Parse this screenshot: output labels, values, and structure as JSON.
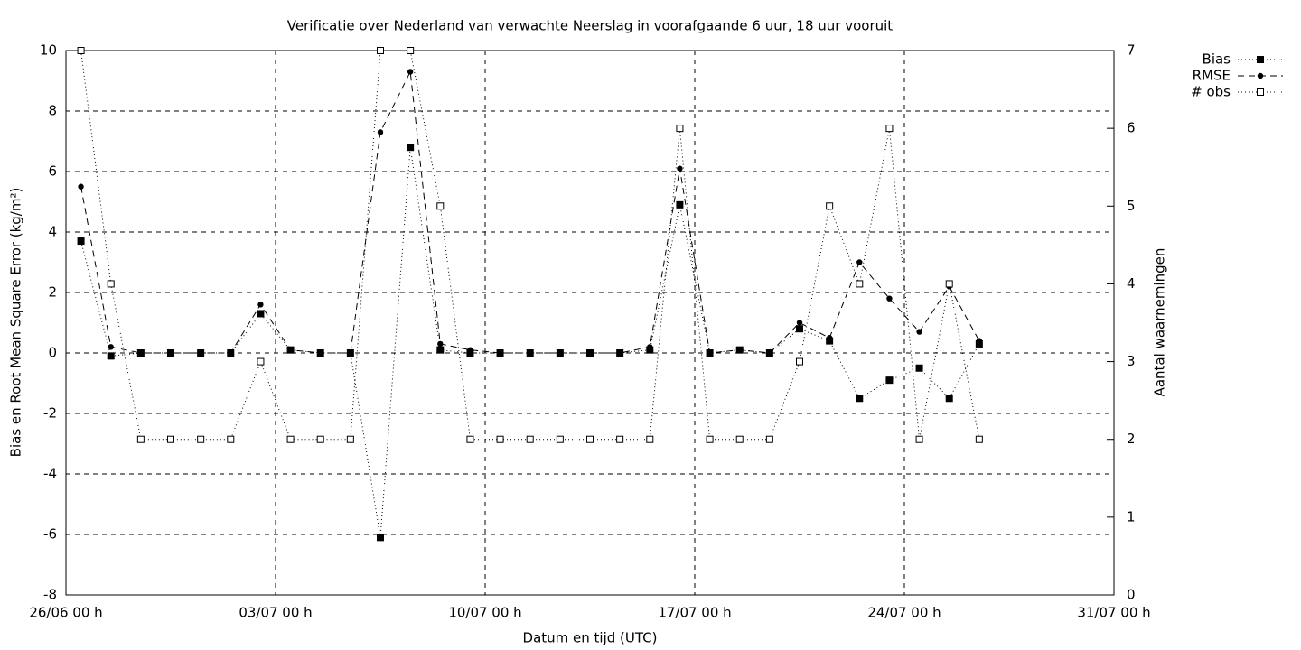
{
  "chart_data": {
    "type": "line",
    "title": "Verificatie over Nederland van verwachte Neerslag in voorafgaande 6 uur, 18 uur vooruit",
    "xlabel": "Datum en tijd (UTC)",
    "ylabel": "Bias en Root Mean Square Error (kg/m²)",
    "y2label": "Aantal waarnemingen",
    "x": [
      "26/06 12 h",
      "27/06 12 h",
      "28/06 12 h",
      "29/06 12 h",
      "30/06 12 h",
      "01/07 12 h",
      "02/07 12 h",
      "03/07 12 h",
      "04/07 12 h",
      "05/07 12 h",
      "06/07 12 h",
      "07/07 12 h",
      "08/07 12 h",
      "09/07 12 h",
      "10/07 12 h",
      "11/07 12 h",
      "12/07 12 h",
      "13/07 12 h",
      "14/07 12 h",
      "15/07 12 h",
      "16/07 12 h",
      "17/07 12 h",
      "18/07 12 h",
      "19/07 12 h",
      "20/07 12 h",
      "21/07 12 h",
      "22/07 12 h",
      "23/07 12 h",
      "24/07 12 h",
      "25/07 12 h",
      "26/07 12 h"
    ],
    "series": [
      {
        "name": "Bias",
        "color": "#000000",
        "dash": "dotted",
        "marker": "square-filled",
        "values": [
          3.7,
          -0.1,
          0,
          0,
          0,
          0,
          1.3,
          0.1,
          0,
          0,
          -6.1,
          6.8,
          0.1,
          0,
          0,
          0,
          0,
          0,
          0,
          0.1,
          4.9,
          0,
          0.1,
          0,
          0.8,
          0.4,
          -1.5,
          -0.9,
          -0.5,
          -1.5,
          0.3
        ]
      },
      {
        "name": "RMSE",
        "color": "#000000",
        "dash": "dashed",
        "marker": "circle-filled",
        "values": [
          5.5,
          0.2,
          0,
          0,
          0,
          0,
          1.6,
          0.1,
          0,
          0,
          7.3,
          9.3,
          0.3,
          0.1,
          0,
          0,
          0,
          0,
          0,
          0.2,
          6.1,
          0,
          0.1,
          0,
          1.0,
          0.5,
          3.0,
          1.8,
          0.7,
          2.2,
          0.4
        ]
      },
      {
        "name": "# obs",
        "color": "#000000",
        "dash": "dotted",
        "marker": "square-open",
        "axis": "y2",
        "values": [
          7,
          4,
          2,
          2,
          2,
          2,
          3,
          2,
          2,
          2,
          7,
          7,
          5,
          2,
          2,
          2,
          2,
          2,
          2,
          2,
          6,
          2,
          2,
          2,
          3,
          5,
          4,
          6,
          2,
          4,
          2
        ]
      }
    ],
    "xlim": [
      "26/06 00 h",
      "31/07 00 h"
    ],
    "xticks": [
      "26/06 00 h",
      "03/07 00 h",
      "10/07 00 h",
      "17/07 00 h",
      "24/07 00 h",
      "31/07 00 h"
    ],
    "ylim": [
      -8,
      10
    ],
    "yticks": [
      -8,
      -6,
      -4,
      -2,
      0,
      2,
      4,
      6,
      8,
      10
    ],
    "y2lim": [
      0,
      7
    ],
    "y2ticks": [
      0,
      1,
      2,
      3,
      4,
      5,
      6,
      7
    ],
    "grid": true,
    "legend": "top-right-outside"
  }
}
